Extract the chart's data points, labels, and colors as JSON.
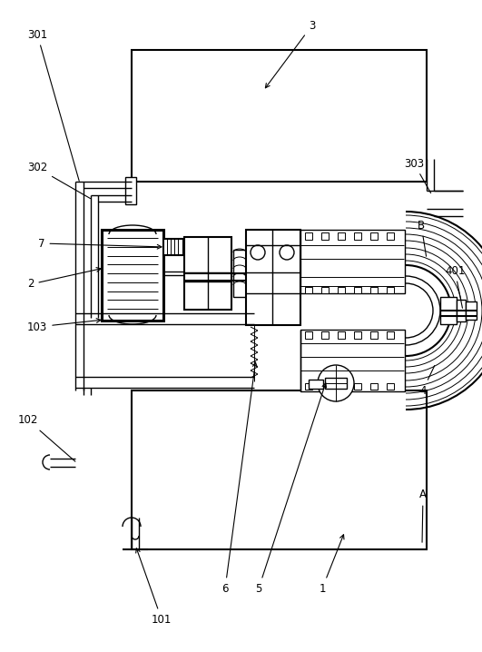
{
  "bg_color": "#ffffff",
  "line_color": "#000000",
  "fig_width": 5.31,
  "fig_height": 7.18,
  "dpi": 100
}
